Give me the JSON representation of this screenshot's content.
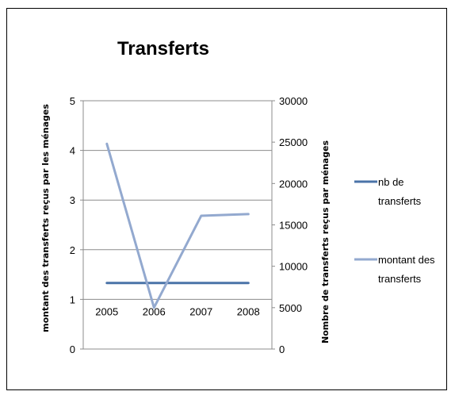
{
  "chart_data": {
    "type": "line",
    "title": "Transferts",
    "categories": [
      "2005",
      "2006",
      "2007",
      "2008"
    ],
    "y_left": {
      "label": "montant des transferts reçus par les ménages",
      "range": [
        0,
        5
      ],
      "ticks": [
        0,
        1,
        2,
        3,
        4,
        5
      ]
    },
    "y_right": {
      "label": "Nombre de transferts reçus par ménages",
      "range": [
        0,
        30000
      ],
      "ticks": [
        0,
        5000,
        10000,
        15000,
        20000,
        25000,
        30000
      ]
    },
    "series": [
      {
        "name": "nb de transferts",
        "axis": "left",
        "color": "#4a73a8",
        "values": [
          1.33,
          1.33,
          1.33,
          1.33
        ]
      },
      {
        "name": "montant des transferts",
        "axis": "right",
        "color": "#93a9cf",
        "values": [
          24800,
          5000,
          16100,
          16300
        ]
      }
    ],
    "grid": "horizontal",
    "legend_position": "right"
  }
}
